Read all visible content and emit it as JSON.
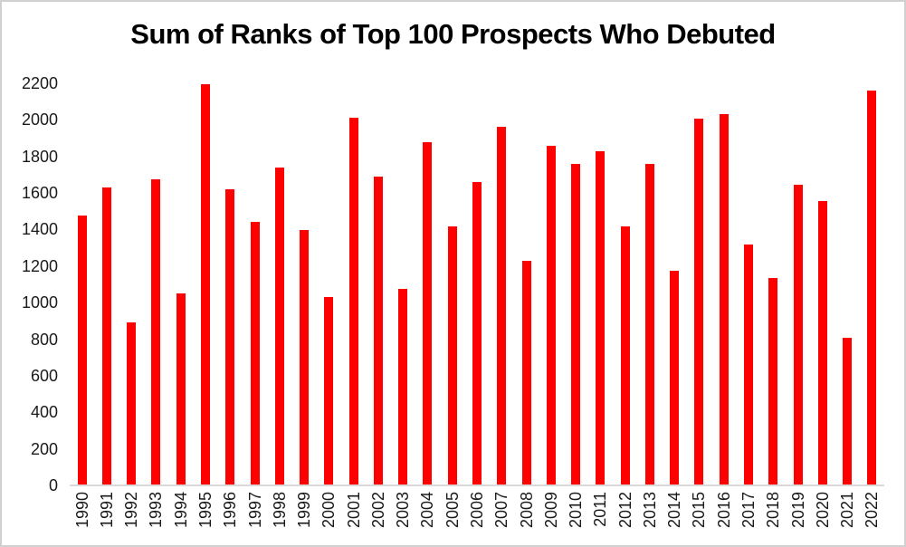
{
  "chart_data": {
    "type": "bar",
    "title": "Sum of Ranks of Top 100 Prospects Who Debuted",
    "categories": [
      "1990",
      "1991",
      "1992",
      "1993",
      "1994",
      "1995",
      "1996",
      "1997",
      "1998",
      "1999",
      "2000",
      "2001",
      "2002",
      "2003",
      "2004",
      "2005",
      "2006",
      "2007",
      "2008",
      "2009",
      "2010",
      "2011",
      "2012",
      "2013",
      "2014",
      "2015",
      "2016",
      "2017",
      "2018",
      "2019",
      "2020",
      "2021",
      "2022"
    ],
    "values": [
      1475,
      1630,
      890,
      1675,
      1050,
      2195,
      1620,
      1440,
      1740,
      1395,
      1030,
      2010,
      1690,
      1075,
      1880,
      1415,
      1660,
      1960,
      1230,
      1860,
      1760,
      1830,
      1415,
      1760,
      1175,
      2005,
      2030,
      1320,
      1135,
      1645,
      1555,
      810,
      2160
    ],
    "xlabel": "",
    "ylabel": "",
    "ylim": [
      0,
      2200
    ],
    "ytick_step": 200,
    "grid": false,
    "legend": false,
    "bar_color": "#ff0000",
    "axis_line_color": "#d9d9d9",
    "title_color": "#000000",
    "tick_label_color": "#1a1a1a",
    "background_color": "#ffffff",
    "border_color": "#d0d0d0"
  }
}
